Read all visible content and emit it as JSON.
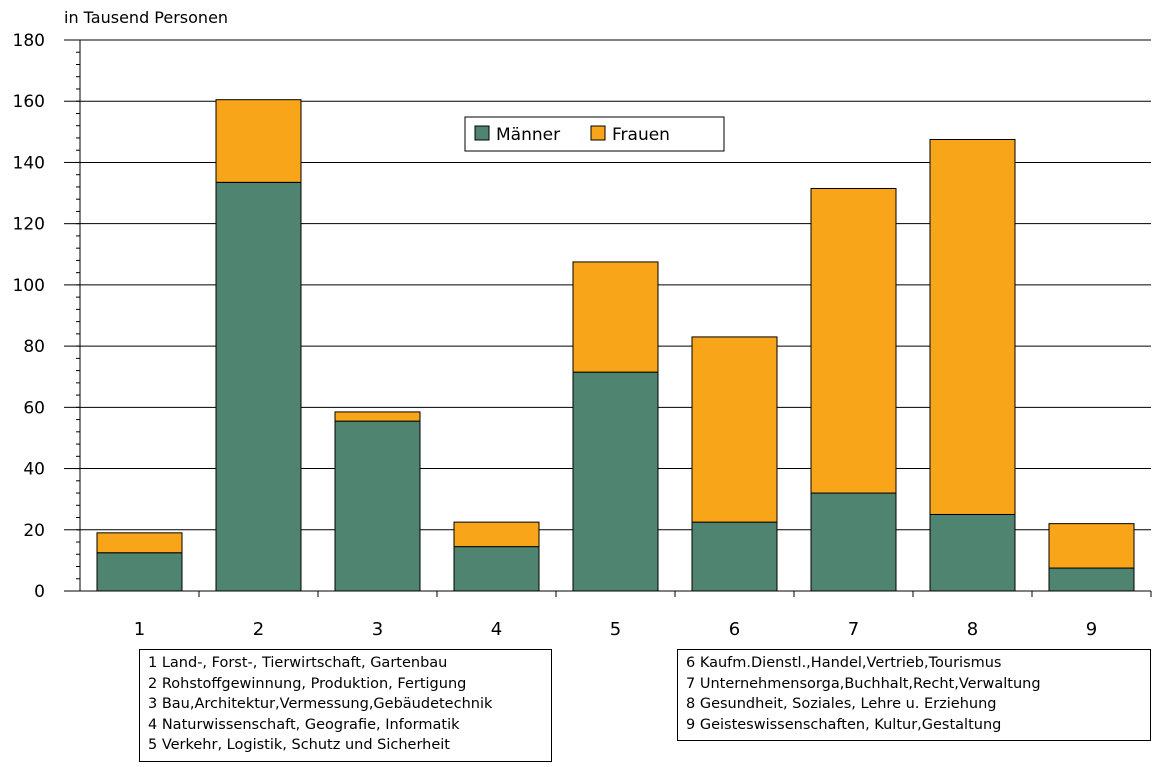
{
  "chart_data": {
    "type": "bar",
    "stacked": true,
    "ylabel": "in Tausend Personen",
    "ylim": [
      0,
      180
    ],
    "y_ticks": [
      "0",
      "20",
      "40",
      "60",
      "80",
      "100",
      "120",
      "140",
      "160",
      "180"
    ],
    "categories": [
      "1",
      "2",
      "3",
      "4",
      "5",
      "6",
      "7",
      "8",
      "9"
    ],
    "series": [
      {
        "name": "Männer",
        "color": "#4f8470",
        "values": [
          12.5,
          133.5,
          55.5,
          14.5,
          71.5,
          22.5,
          32,
          25,
          7.5
        ]
      },
      {
        "name": "Frauen",
        "color": "#f9a51a",
        "values": [
          6.5,
          27,
          3,
          8,
          36,
          60.5,
          99.5,
          122.5,
          14.5
        ]
      }
    ],
    "grid": true,
    "legend_position": "top-center"
  },
  "category_key": {
    "left": [
      "1  Land-, Forst-, Tierwirtschaft, Gartenbau",
      "2  Rohstoffgewinnung, Produktion, Fertigung",
      "3  Bau,Architektur,Vermessung,Gebäudetechnik",
      "4  Naturwissenschaft, Geografie, Informatik",
      "5  Verkehr, Logistik, Schutz und Sicherheit"
    ],
    "right": [
      "6  Kaufm.Dienstl.,Handel,Vertrieb,Tourismus",
      "7  Unternehmensorga,Buchhalt,Recht,Verwaltung",
      "8  Gesundheit, Soziales, Lehre u. Erziehung",
      "9  Geisteswissenschaften, Kultur,Gestaltung"
    ]
  }
}
